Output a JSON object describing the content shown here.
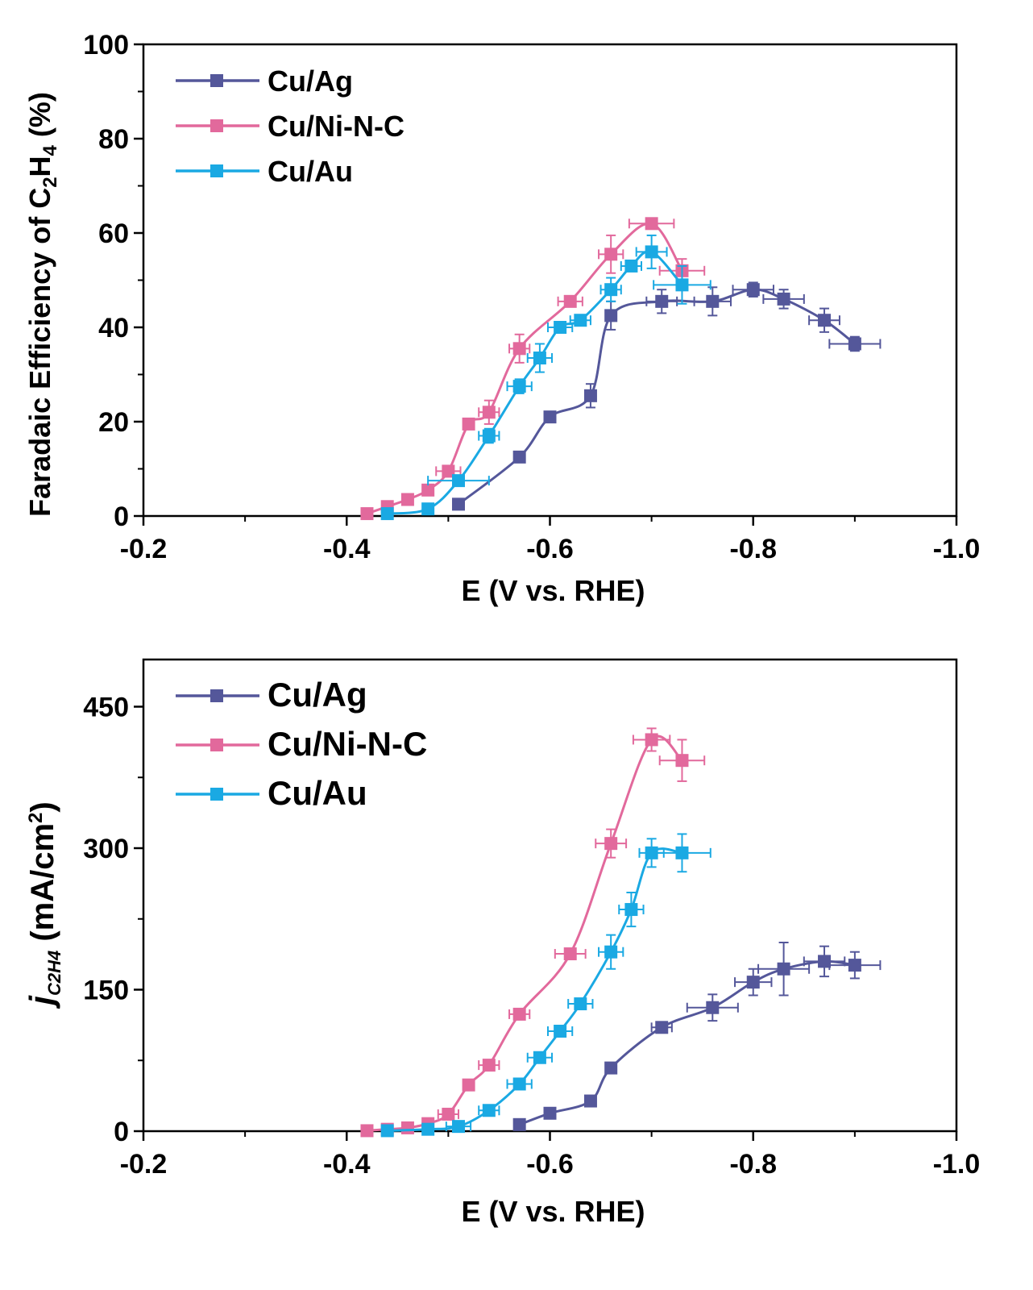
{
  "chart_data": [
    {
      "type": "line",
      "xlabel": "E (V vs. RHE)",
      "ylabel_parts": [
        "Faradaic Efficiency of C",
        "2",
        "H",
        "4",
        " (%)"
      ],
      "xlim": [
        -0.2,
        -1.0
      ],
      "ylim": [
        0,
        100
      ],
      "xticks": [
        -0.2,
        -0.4,
        -0.6,
        -0.8,
        -1.0
      ],
      "xtick_labels": [
        "-0.2",
        "-0.4",
        "-0.6",
        "-0.8",
        "-1.0"
      ],
      "yticks": [
        0,
        20,
        40,
        60,
        80,
        100
      ],
      "ytick_labels": [
        "0",
        "20",
        "40",
        "60",
        "80",
        "100"
      ],
      "legend_position": "top-left",
      "series": [
        {
          "name": "Cu/Ag",
          "color": "#54579a",
          "x": [
            -0.51,
            -0.57,
            -0.6,
            -0.64,
            -0.66,
            -0.71,
            -0.76,
            -0.8,
            -0.83,
            -0.87,
            -0.9
          ],
          "y": [
            2.5,
            12.5,
            21,
            25.5,
            42.5,
            45.5,
            45.5,
            48,
            46,
            41.5,
            36.5
          ],
          "xerr": [
            0,
            0,
            0,
            0,
            0,
            0.015,
            0.018,
            0.02,
            0.02,
            0.015,
            0.025
          ],
          "yerr": [
            0,
            0,
            0,
            2.5,
            3,
            2.5,
            3,
            1.5,
            2,
            2.5,
            1.5
          ]
        },
        {
          "name": "Cu/Ni-N-C",
          "color": "#e2699c",
          "x": [
            -0.42,
            -0.44,
            -0.46,
            -0.48,
            -0.5,
            -0.52,
            -0.54,
            -0.57,
            -0.62,
            -0.66,
            -0.7,
            -0.73
          ],
          "y": [
            0.5,
            2,
            3.5,
            5.5,
            9.5,
            19.5,
            22,
            35.5,
            45.5,
            55.5,
            62,
            52
          ],
          "xerr": [
            0,
            0,
            0,
            0,
            0.012,
            0,
            0.01,
            0.01,
            0.012,
            0.012,
            0.022,
            0.022
          ],
          "yerr": [
            0,
            0,
            0,
            0,
            0,
            0,
            2.5,
            3,
            0,
            4,
            1,
            2.5
          ]
        },
        {
          "name": "Cu/Au",
          "color": "#1aa9e3",
          "x": [
            -0.44,
            -0.48,
            -0.51,
            -0.54,
            -0.57,
            -0.59,
            -0.61,
            -0.63,
            -0.66,
            -0.68,
            -0.7,
            -0.73
          ],
          "y": [
            0.5,
            1.5,
            7.5,
            17,
            27.5,
            33.5,
            40,
            41.5,
            48,
            53,
            56,
            49
          ],
          "xerr": [
            0,
            0,
            0.03,
            0.01,
            0.012,
            0.012,
            0.012,
            0.01,
            0.01,
            0.01,
            0.015,
            0.028
          ],
          "yerr": [
            0,
            0,
            0,
            1.5,
            1.5,
            3,
            0,
            0,
            2.5,
            1,
            3.5,
            4
          ]
        }
      ]
    },
    {
      "type": "line",
      "xlabel": "E (V vs. RHE)",
      "ylabel_prefix": "j",
      "ylabel_subscript": "C2H4",
      "ylabel_suffix": " (mA/cm",
      "ylabel_sup": "2",
      "ylabel_close": ")",
      "xlim": [
        -0.2,
        -1.0
      ],
      "ylim": [
        0,
        500
      ],
      "xticks": [
        -0.2,
        -0.4,
        -0.6,
        -0.8,
        -1.0
      ],
      "xtick_labels": [
        "-0.2",
        "-0.4",
        "-0.6",
        "-0.8",
        "-1.0"
      ],
      "yticks": [
        0,
        150,
        300,
        450
      ],
      "ytick_labels": [
        "0",
        "150",
        "300",
        "450"
      ],
      "legend_position": "top-left",
      "series": [
        {
          "name": "Cu/Ag",
          "color": "#54579a",
          "x": [
            -0.57,
            -0.6,
            -0.64,
            -0.66,
            -0.71,
            -0.76,
            -0.8,
            -0.83,
            -0.87,
            -0.9
          ],
          "y": [
            7,
            19,
            32,
            67,
            110,
            131,
            158,
            172,
            180,
            176
          ],
          "xerr": [
            0,
            0,
            0,
            0,
            0.01,
            0.025,
            0.018,
            0.025,
            0.02,
            0.025
          ],
          "yerr": [
            0,
            0,
            0,
            4,
            4,
            14,
            14,
            28,
            16,
            14
          ]
        },
        {
          "name": "Cu/Ni-N-C",
          "color": "#e2699c",
          "x": [
            -0.42,
            -0.44,
            -0.46,
            -0.48,
            -0.5,
            -0.52,
            -0.54,
            -0.57,
            -0.62,
            -0.66,
            -0.7,
            -0.73
          ],
          "y": [
            0.5,
            2,
            3.5,
            8,
            18,
            49,
            70,
            124,
            188,
            305,
            415,
            393
          ],
          "xerr": [
            0,
            0,
            0,
            0,
            0.01,
            0,
            0.01,
            0.01,
            0.015,
            0.015,
            0.018,
            0.022
          ],
          "yerr": [
            0,
            0,
            0,
            0,
            0,
            0,
            0,
            0,
            0,
            15,
            12,
            22
          ]
        },
        {
          "name": "Cu/Au",
          "color": "#1aa9e3",
          "x": [
            -0.44,
            -0.48,
            -0.51,
            -0.54,
            -0.57,
            -0.59,
            -0.61,
            -0.63,
            -0.66,
            -0.68,
            -0.7,
            -0.73
          ],
          "y": [
            0.5,
            2,
            5,
            22,
            50,
            78,
            106,
            135,
            190,
            235,
            295,
            295
          ],
          "xerr": [
            0,
            0,
            0.012,
            0.01,
            0.012,
            0.012,
            0.012,
            0.012,
            0.012,
            0.012,
            0.012,
            0.028
          ],
          "yerr": [
            0,
            0,
            0,
            0,
            0,
            0,
            0,
            0,
            18,
            18,
            15,
            20
          ]
        }
      ]
    }
  ]
}
